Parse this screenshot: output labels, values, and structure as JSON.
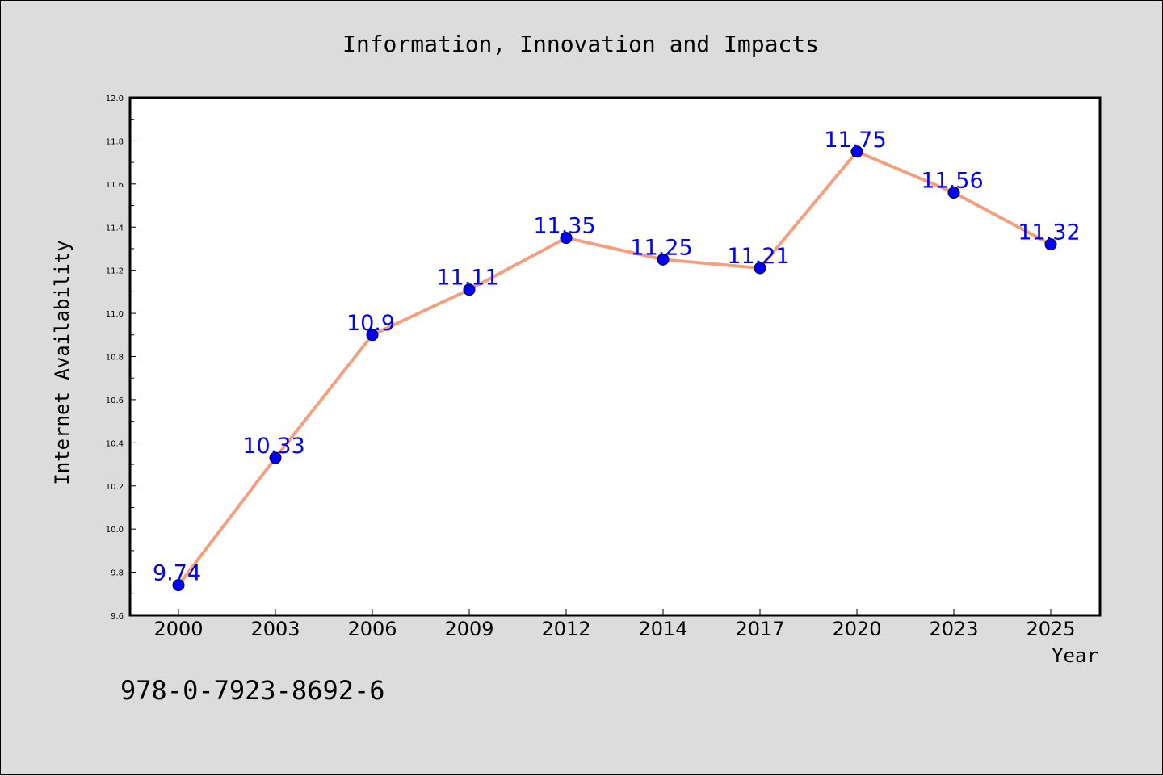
{
  "chart_data": {
    "type": "line",
    "title": "Information, Innovation and Impacts",
    "xlabel": "Year",
    "ylabel": "Internet Availability",
    "categories": [
      "2000",
      "2003",
      "2006",
      "2009",
      "2012",
      "2014",
      "2017",
      "2020",
      "2023",
      "2025"
    ],
    "series": [
      {
        "values": [
          9.74,
          10.33,
          10.9,
          11.11,
          11.35,
          11.25,
          11.21,
          11.75,
          11.56,
          11.32
        ],
        "labels": [
          "9.74",
          "10.33",
          "10.9",
          "11.11",
          "11.35",
          "11.25",
          "11.21",
          "11.75",
          "11.56",
          "11.32"
        ],
        "line_color": "#f4a07f",
        "marker_color": "#0000ff"
      }
    ],
    "ylim": [
      9.6,
      12.0
    ],
    "yticks": [
      "9.6",
      "9.8",
      "10.0",
      "10.2",
      "10.4",
      "10.6",
      "10.8",
      "11.0",
      "11.2",
      "11.4",
      "11.6",
      "11.8",
      "12.0"
    ],
    "grid": false,
    "legend": "none",
    "background_color": "#dcdcdc",
    "plot_background": "#ffffff"
  },
  "isbn": "978-0-7923-8692-6"
}
